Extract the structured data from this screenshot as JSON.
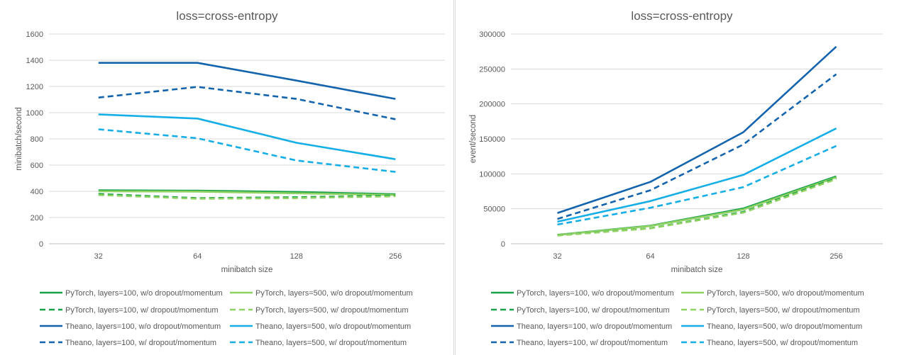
{
  "chart_data": [
    {
      "type": "line",
      "title": "loss=cross-entropy",
      "xlabel": "minibatch size",
      "ylabel": "minibatch/second",
      "categories": [
        "32",
        "64",
        "128",
        "256"
      ],
      "ylim": [
        0,
        1600
      ],
      "yticks": [
        0,
        200,
        400,
        600,
        800,
        1000,
        1200,
        1400,
        1600
      ],
      "grid": true,
      "legend_position": "bottom",
      "series": [
        {
          "name": "PyTorch, layers=100, w/o dropout/momentum",
          "color": "#1aa24a",
          "dash": "solid",
          "values": [
            408,
            405,
            395,
            378
          ]
        },
        {
          "name": "PyTorch, layers=500, w/o dropout/momentum",
          "color": "#8fd163",
          "dash": "solid",
          "values": [
            400,
            398,
            385,
            372
          ]
        },
        {
          "name": "PyTorch, layers=100, w/ dropout/momentum",
          "color": "#1aa24a",
          "dash": "dashed",
          "values": [
            380,
            348,
            355,
            368
          ]
        },
        {
          "name": "PyTorch, layers=500, w/ dropout/momentum",
          "color": "#8fd163",
          "dash": "dashed",
          "values": [
            372,
            343,
            348,
            362
          ]
        },
        {
          "name": "Theano, layers=100, w/o dropout/momentum",
          "color": "#1464ad",
          "dash": "solid",
          "values": [
            1380,
            1380,
            1245,
            1105
          ]
        },
        {
          "name": "Theano, layers=500, w/o dropout/momentum",
          "color": "#16aee6",
          "dash": "solid",
          "values": [
            987,
            955,
            770,
            645
          ]
        },
        {
          "name": "Theano, layers=100, w/ dropout/momentum",
          "color": "#1464ad",
          "dash": "dashed",
          "values": [
            1115,
            1197,
            1105,
            950
          ]
        },
        {
          "name": "Theano, layers=500, w/ dropout/momentum",
          "color": "#16aee6",
          "dash": "dashed",
          "values": [
            873,
            805,
            635,
            548
          ]
        }
      ]
    },
    {
      "type": "line",
      "title": "loss=cross-entropy",
      "xlabel": "minibatch size",
      "ylabel": "event/second",
      "categories": [
        "32",
        "64",
        "128",
        "256"
      ],
      "ylim": [
        0,
        300000
      ],
      "yticks": [
        0,
        50000,
        100000,
        150000,
        200000,
        250000,
        300000
      ],
      "grid": true,
      "legend_position": "bottom",
      "series": [
        {
          "name": "PyTorch, layers=100, w/o dropout/momentum",
          "color": "#1aa24a",
          "dash": "solid",
          "values": [
            12800,
            25800,
            50500,
            96500
          ]
        },
        {
          "name": "PyTorch, layers=500, w/o dropout/momentum",
          "color": "#8fd163",
          "dash": "solid",
          "values": [
            12500,
            25300,
            49000,
            95000
          ]
        },
        {
          "name": "PyTorch, layers=100, w/ dropout/momentum",
          "color": "#1aa24a",
          "dash": "dashed",
          "values": [
            12000,
            22300,
            45500,
            94000
          ]
        },
        {
          "name": "PyTorch, layers=500, w/ dropout/momentum",
          "color": "#8fd163",
          "dash": "dashed",
          "values": [
            11800,
            22000,
            44500,
            92500
          ]
        },
        {
          "name": "Theano, layers=100, w/o dropout/momentum",
          "color": "#1464ad",
          "dash": "solid",
          "values": [
            44000,
            88500,
            159500,
            282000
          ]
        },
        {
          "name": "Theano, layers=500, w/o dropout/momentum",
          "color": "#16aee6",
          "dash": "solid",
          "values": [
            31500,
            61000,
            98500,
            165000
          ]
        },
        {
          "name": "Theano, layers=100, w/ dropout/momentum",
          "color": "#1464ad",
          "dash": "dashed",
          "values": [
            35500,
            76500,
            142000,
            242500
          ]
        },
        {
          "name": "Theano, layers=500, w/ dropout/momentum",
          "color": "#16aee6",
          "dash": "dashed",
          "values": [
            27500,
            51500,
            81000,
            140000
          ]
        }
      ]
    }
  ]
}
